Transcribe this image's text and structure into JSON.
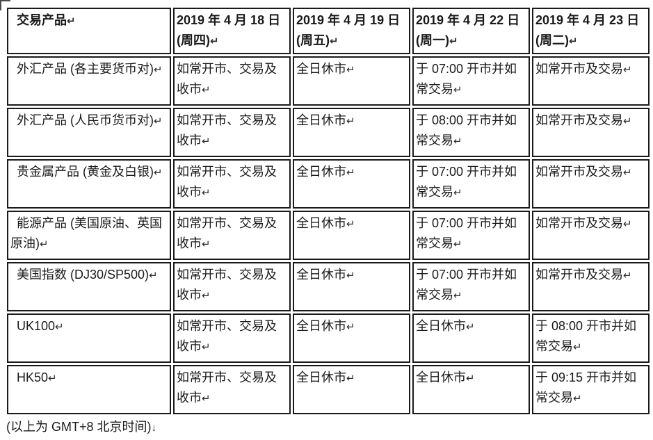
{
  "page": {
    "colors": {
      "background": "#ffffff",
      "text": "#1a1a1a",
      "border": "#1a1a1a"
    }
  },
  "marks": {
    "cell_end": "↵",
    "line_end": "↓"
  },
  "table": {
    "header": [
      "交易产品",
      "2019 年 4 月 18 日(周四)",
      "2019 年 4 月 19 日(周五)",
      "2019 年 4 月 22 日(周一)",
      "2019 年 4 月 23 日(周二)"
    ],
    "rows": [
      {
        "product": "外汇产品 (各主要货币对)",
        "cells": [
          "如常开市、交易及收市",
          "全日休市",
          "于 07:00 开市并如常交易",
          "如常开市及交易"
        ]
      },
      {
        "product": "外汇产品 (人民币货币对)",
        "cells": [
          "如常开市、交易及收市",
          "全日休市",
          "于 08:00 开市并如常交易",
          "如常开市及交易"
        ]
      },
      {
        "product": "贵金属产品 (黄金及白银)",
        "cells": [
          "如常开市、交易及收市",
          "全日休市",
          "于 07:00 开市并如常交易",
          "如常开市及交易"
        ]
      },
      {
        "product": "能源产品 (美国原油、英国原油)",
        "cells": [
          "如常开市、交易及收市",
          "全日休市",
          "于 07:00 开市并如常交易",
          "如常开市及交易"
        ]
      },
      {
        "product": "美国指数 (DJ30/SP500)",
        "cells": [
          "如常开市、交易及收市",
          "全日休市",
          "于 07:00 开市并如常交易",
          "如常开市及交易"
        ]
      },
      {
        "product": "UK100",
        "cells": [
          "如常开市、交易及收市",
          "全日休市",
          "全日休市",
          "于 08:00 开市并如常交易"
        ]
      },
      {
        "product": "HK50",
        "cells": [
          "如常开市、交易及收市",
          "全日休市",
          "全日休市",
          "于 09:15 开市并如常交易"
        ]
      }
    ]
  },
  "footer": {
    "text": "(以上为 GMT+8 北京时间)",
    "mark": "↓"
  }
}
